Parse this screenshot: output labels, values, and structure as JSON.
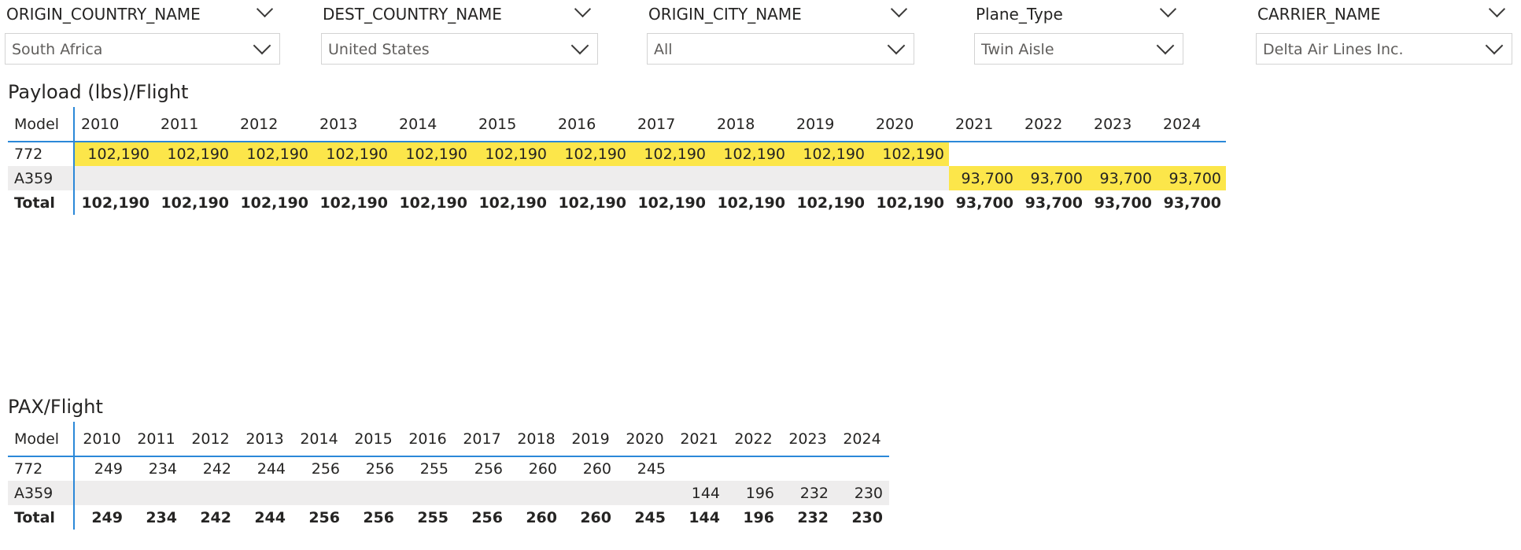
{
  "slicers": [
    {
      "title": "ORIGIN_COUNTRY_NAME",
      "value": "South Africa"
    },
    {
      "title": "DEST_COUNTRY_NAME",
      "value": "United States"
    },
    {
      "title": "ORIGIN_CITY_NAME",
      "value": "All"
    },
    {
      "title": "Plane_Type",
      "value": "Twin Aisle"
    },
    {
      "title": "CARRIER_NAME",
      "value": "Delta Air Lines Inc."
    }
  ],
  "payload": {
    "title": "Payload (lbs)/Flight",
    "header": [
      "Model",
      "2010",
      "2011",
      "2012",
      "2013",
      "2014",
      "2015",
      "2016",
      "2017",
      "2018",
      "2019",
      "2020",
      "2021",
      "2022",
      "2023",
      "2024"
    ],
    "rows": [
      {
        "label": "772",
        "values": [
          "102,190",
          "102,190",
          "102,190",
          "102,190",
          "102,190",
          "102,190",
          "102,190",
          "102,190",
          "102,190",
          "102,190",
          "102,190",
          "",
          "",
          "",
          ""
        ]
      },
      {
        "label": "A359",
        "values": [
          "",
          "",
          "",
          "",
          "",
          "",
          "",
          "",
          "",
          "",
          "",
          "93,700",
          "93,700",
          "93,700",
          "93,700"
        ]
      }
    ],
    "total": {
      "label": "Total",
      "values": [
        "102,190",
        "102,190",
        "102,190",
        "102,190",
        "102,190",
        "102,190",
        "102,190",
        "102,190",
        "102,190",
        "102,190",
        "102,190",
        "93,700",
        "93,700",
        "93,700",
        "93,700"
      ]
    },
    "highlight_color": "#fce64a"
  },
  "pax": {
    "title": "PAX/Flight",
    "header": [
      "Model",
      "2010",
      "2011",
      "2012",
      "2013",
      "2014",
      "2015",
      "2016",
      "2017",
      "2018",
      "2019",
      "2020",
      "2021",
      "2022",
      "2023",
      "2024"
    ],
    "rows": [
      {
        "label": "772",
        "values": [
          "249",
          "234",
          "242",
          "244",
          "256",
          "256",
          "255",
          "256",
          "260",
          "260",
          "245",
          "",
          "",
          "",
          ""
        ]
      },
      {
        "label": "A359",
        "values": [
          "",
          "",
          "",
          "",
          "",
          "",
          "",
          "",
          "",
          "",
          "",
          "144",
          "196",
          "232",
          "230"
        ]
      }
    ],
    "total": {
      "label": "Total",
      "values": [
        "249",
        "234",
        "242",
        "244",
        "256",
        "256",
        "255",
        "256",
        "260",
        "260",
        "245",
        "144",
        "196",
        "232",
        "230"
      ]
    }
  },
  "colors": {
    "accent": "#2b88d8",
    "alt_row": "#eeeded"
  }
}
